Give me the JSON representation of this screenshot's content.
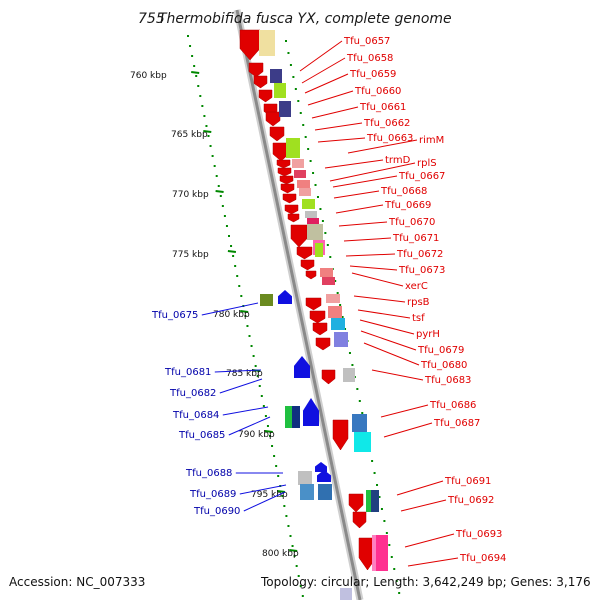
{
  "title": "Thermobifida fusca YX, complete genome",
  "title_prefix": "755",
  "footer": {
    "accession": "Accession: NC_007333",
    "summary": "Topology: circular; Length: 3,642,249 bp; Genes: 3,176"
  },
  "colors": {
    "forward_gene": "#e00000",
    "reverse_gene": "#1010e0",
    "forward_label": "#e00000",
    "reverse_label": "#0000aa",
    "scale_dots": "#008800",
    "backbone": "#999999"
  },
  "ruler": [
    {
      "text": "760 kbp"
    },
    {
      "text": "765 kbp"
    },
    {
      "text": "770 kbp"
    },
    {
      "text": "775 kbp"
    },
    {
      "text": "780 kbp"
    },
    {
      "text": "785 kbp"
    },
    {
      "text": "790 kbp"
    },
    {
      "text": "795 kbp"
    },
    {
      "text": "800 kbp"
    }
  ],
  "forward_labels": [
    "Tfu_0657",
    "Tfu_0658",
    "Tfu_0659",
    "Tfu_0660",
    "Tfu_0661",
    "Tfu_0662",
    "Tfu_0663",
    "rimM",
    "trmD",
    "rplS",
    "Tfu_0667",
    "Tfu_0668",
    "Tfu_0669",
    "Tfu_0670",
    "Tfu_0671",
    "Tfu_0672",
    "Tfu_0673",
    "xerC",
    "rpsB",
    "tsf",
    "pyrH",
    "Tfu_0679",
    "Tfu_0680",
    "Tfu_0683",
    "Tfu_0686",
    "Tfu_0687",
    "Tfu_0691",
    "Tfu_0692",
    "Tfu_0693",
    "Tfu_0694"
  ],
  "reverse_labels": [
    "Tfu_0675",
    "Tfu_0681",
    "Tfu_0682",
    "Tfu_0684",
    "Tfu_0685",
    "Tfu_0688",
    "Tfu_0689",
    "Tfu_0690"
  ]
}
